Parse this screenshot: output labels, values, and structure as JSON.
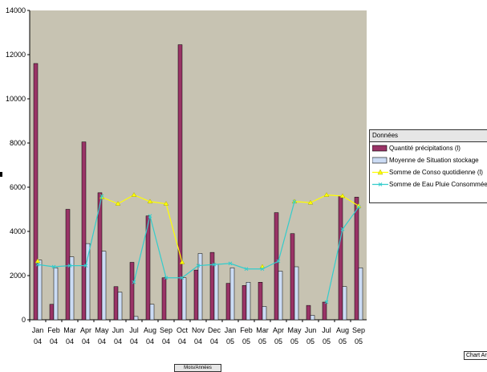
{
  "chart_data": {
    "type": "bar",
    "categories": [
      [
        "Jan",
        "04"
      ],
      [
        "Feb",
        "04"
      ],
      [
        "Mar",
        "04"
      ],
      [
        "Apr",
        "04"
      ],
      [
        "May",
        "04"
      ],
      [
        "Jun",
        "04"
      ],
      [
        "Jul",
        "04"
      ],
      [
        "Aug",
        "04"
      ],
      [
        "Sep",
        "04"
      ],
      [
        "Oct",
        "04"
      ],
      [
        "Nov",
        "04"
      ],
      [
        "Dec",
        "04"
      ],
      [
        "Jan",
        "05"
      ],
      [
        "Feb",
        "05"
      ],
      [
        "Mar",
        "05"
      ],
      [
        "Apr",
        "05"
      ],
      [
        "May",
        "05"
      ],
      [
        "Jun",
        "05"
      ],
      [
        "Jul",
        "05"
      ],
      [
        "Aug",
        "05"
      ],
      [
        "Sep",
        "05"
      ]
    ],
    "ylim": [
      0,
      14000
    ],
    "yticks": [
      0,
      2000,
      4000,
      6000,
      8000,
      10000,
      12000,
      14000
    ],
    "grid": false,
    "legend_title": "Données",
    "legend_position": "right",
    "series": [
      {
        "name": "Quantité précipitations (l)",
        "kind": "bar",
        "color": "#993366",
        "values": [
          11600,
          700,
          5000,
          8050,
          5750,
          1500,
          2600,
          4700,
          1900,
          12450,
          2250,
          3050,
          1650,
          1550,
          1700,
          4850,
          3900,
          650,
          800,
          5600,
          5550
        ]
      },
      {
        "name": "Moyenne de Situation stockage",
        "kind": "bar",
        "color": "#ccdcf4",
        "values": [
          2700,
          2350,
          2850,
          3450,
          3100,
          1250,
          150,
          700,
          0,
          1900,
          3000,
          2500,
          2350,
          1700,
          600,
          2200,
          2400,
          200,
          0,
          1500,
          2350
        ]
      },
      {
        "name": "Somme de Conso quotidienne (l)",
        "kind": "line",
        "color": "#ffff00",
        "marker": "triangle",
        "values": [
          2650,
          null,
          null,
          null,
          5550,
          5250,
          5650,
          5350,
          5250,
          2600,
          null,
          null,
          null,
          null,
          2400,
          null,
          5350,
          5300,
          5650,
          5600,
          5150
        ]
      },
      {
        "name": "Somme de Eau Pluie Consommée",
        "kind": "line",
        "color": "#33cccc",
        "marker": "x",
        "values": [
          2500,
          2400,
          2450,
          2450,
          5600,
          null,
          1700,
          4700,
          1900,
          1900,
          2450,
          2500,
          2550,
          2300,
          2300,
          2650,
          5350,
          null,
          800,
          4100,
          5100
        ]
      }
    ]
  },
  "ui": {
    "chart_area_button": "Chart Ar",
    "bottom_button": "Mois/Années"
  }
}
